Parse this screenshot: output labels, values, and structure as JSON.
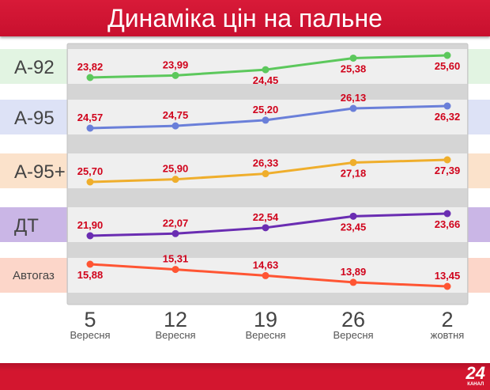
{
  "title": "Динаміка цін на пальне",
  "logo": {
    "number": "24",
    "text": "КАНАЛ"
  },
  "chart_data": {
    "type": "line",
    "title": "Динаміка цін на пальне",
    "categories": [
      {
        "day": "5",
        "month": "Вересня"
      },
      {
        "day": "12",
        "month": "Вересня"
      },
      {
        "day": "19",
        "month": "Вересня"
      },
      {
        "day": "26",
        "month": "Вересня"
      },
      {
        "day": "2",
        "month": "жовтня"
      }
    ],
    "series": [
      {
        "name": "А-92",
        "color": "#5cc85c",
        "band": "#e2f4e2",
        "values": [
          23.82,
          23.99,
          24.45,
          25.38,
          25.6
        ],
        "labels": [
          "23,82",
          "23,99",
          "24,45",
          "25,38",
          "25,60"
        ]
      },
      {
        "name": "А-95",
        "color": "#6a7fd9",
        "band": "#dde2f6",
        "values": [
          24.57,
          24.75,
          25.2,
          26.13,
          26.32
        ],
        "labels": [
          "24,57",
          "24,75",
          "25,20",
          "26,13",
          "26,32"
        ]
      },
      {
        "name": "А-95+",
        "color": "#efae2c",
        "band": "#fbe2cb",
        "values": [
          25.7,
          25.9,
          26.33,
          27.18,
          27.39
        ],
        "labels": [
          "25,70",
          "25,90",
          "26,33",
          "27,18",
          "27,39"
        ]
      },
      {
        "name": "ДТ",
        "color": "#6a2db2",
        "band": "#cab6e6",
        "values": [
          21.9,
          22.07,
          22.54,
          23.45,
          23.66
        ],
        "labels": [
          "21,90",
          "22,07",
          "22,54",
          "23,45",
          "23,66"
        ]
      },
      {
        "name": "Автогаз",
        "color": "#ff5533",
        "band": "#fcd6c9",
        "values": [
          15.88,
          15.31,
          14.63,
          13.89,
          13.45
        ],
        "labels": [
          "15,88",
          "15,31",
          "14,63",
          "13,89",
          "13,45"
        ]
      }
    ],
    "label_color": "#d0021b"
  }
}
